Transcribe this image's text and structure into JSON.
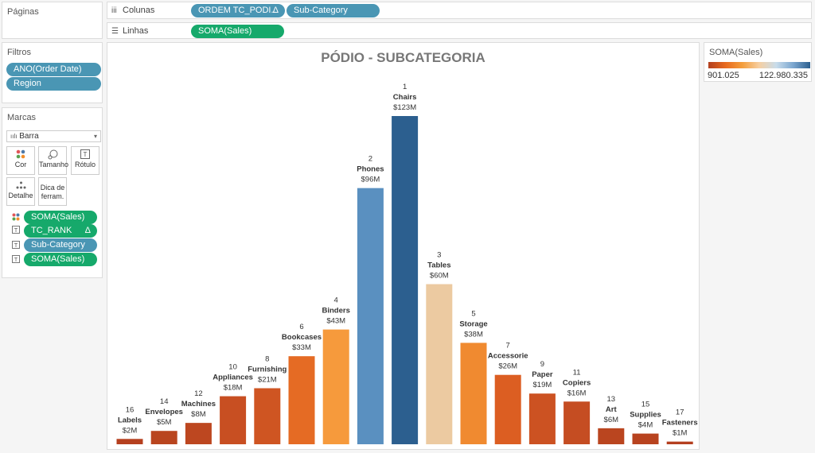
{
  "pages_panel": {
    "title": "Páginas"
  },
  "filters_panel": {
    "title": "Filtros",
    "pills": [
      "ANO(Order Date)",
      "Region"
    ]
  },
  "marks_panel": {
    "title": "Marcas",
    "mark_type": "Barra",
    "buttons": {
      "color": "Cor",
      "size": "Tamanho",
      "label": "Rótulo",
      "detail": "Detalhe",
      "tooltip": "Dica de ferram."
    },
    "fields": [
      {
        "label": "SOMA(Sales)",
        "kind": "green",
        "icon": "color-dots-icon"
      },
      {
        "label": "TC_RANK",
        "kind": "green",
        "icon": "text-icon",
        "delta": "Δ"
      },
      {
        "label": "Sub-Category",
        "kind": "blue",
        "icon": "text-icon"
      },
      {
        "label": "SOMA(Sales)",
        "kind": "green",
        "icon": "text-icon"
      }
    ]
  },
  "columns_shelf": {
    "label": "Colunas",
    "pills": [
      {
        "label": "ORDEM TC_PODI..",
        "delta": "Δ"
      },
      {
        "label": "Sub-Category"
      }
    ]
  },
  "rows_shelf": {
    "label": "Linhas",
    "pills": [
      {
        "label": "SOMA(Sales)"
      }
    ]
  },
  "legend": {
    "title": "SOMA(Sales)",
    "min_label": "901.025",
    "max_label": "122.980.335",
    "low_color": "#b2401f",
    "high_color": "#2c5f8f"
  },
  "chart_data": {
    "type": "bar",
    "title": "PÓDIO - SUBCATEGORIA",
    "ylim": [
      0,
      123
    ],
    "bars": [
      {
        "rank": "16",
        "category": "Labels",
        "label": "$2M",
        "value": 2,
        "color": "#b5401f"
      },
      {
        "rank": "14",
        "category": "Envelopes",
        "label": "$5M",
        "value": 5,
        "color": "#b9451f"
      },
      {
        "rank": "12",
        "category": "Machines",
        "label": "$8M",
        "value": 8,
        "color": "#bd4720"
      },
      {
        "rank": "10",
        "category": "Appliances",
        "label": "$18M",
        "value": 18,
        "color": "#c84f22"
      },
      {
        "rank": "8",
        "category": "Furnishing",
        "label": "$21M",
        "value": 21,
        "color": "#cf5522"
      },
      {
        "rank": "6",
        "category": "Bookcases",
        "label": "$33M",
        "value": 33,
        "color": "#e56b24"
      },
      {
        "rank": "4",
        "category": "Binders",
        "label": "$43M",
        "value": 43,
        "color": "#f69a3c"
      },
      {
        "rank": "2",
        "category": "Phones",
        "label": "$96M",
        "value": 96,
        "color": "#5a90c0"
      },
      {
        "rank": "1",
        "category": "Chairs",
        "label": "$123M",
        "value": 123,
        "color": "#2c5f8f"
      },
      {
        "rank": "3",
        "category": "Tables",
        "label": "$60M",
        "value": 60,
        "color": "#eccaa1"
      },
      {
        "rank": "5",
        "category": "Storage",
        "label": "$38M",
        "value": 38,
        "color": "#f08a30"
      },
      {
        "rank": "7",
        "category": "Accessorie",
        "label": "$26M",
        "value": 26,
        "color": "#dc5e22"
      },
      {
        "rank": "9",
        "category": "Paper",
        "label": "$19M",
        "value": 19,
        "color": "#cc5222"
      },
      {
        "rank": "11",
        "category": "Copiers",
        "label": "$16M",
        "value": 16,
        "color": "#c54d22"
      },
      {
        "rank": "13",
        "category": "Art",
        "label": "$6M",
        "value": 6,
        "color": "#ba451f"
      },
      {
        "rank": "15",
        "category": "Supplies",
        "label": "$4M",
        "value": 4,
        "color": "#b8431f"
      },
      {
        "rank": "17",
        "category": "Fasteners",
        "label": "$1M",
        "value": 1,
        "color": "#b43f1f"
      }
    ]
  }
}
